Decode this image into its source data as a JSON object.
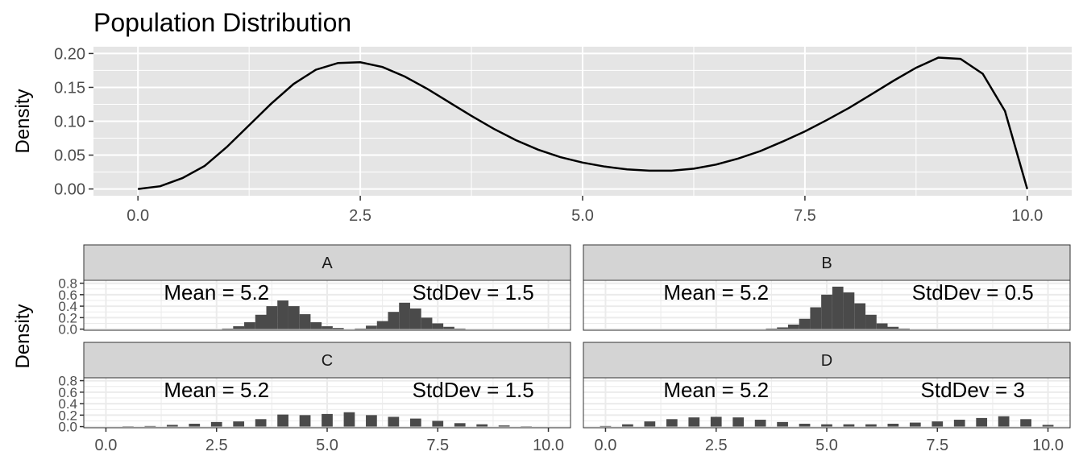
{
  "colors": {
    "panel_bg": "#e5e5e5",
    "grid": "#ffffff",
    "line": "#000000",
    "bar": "#4a4a4a",
    "strip_bg": "#d4d4d4",
    "text": "#4d4d4d"
  },
  "chart_data": [
    {
      "type": "line",
      "title": "Population Distribution",
      "xlabel": "",
      "ylabel": "Density",
      "xlim": [
        -0.5,
        10.5
      ],
      "ylim": [
        -0.01,
        0.21
      ],
      "x_ticks": [
        "0.0",
        "2.5",
        "5.0",
        "7.5",
        "10.0"
      ],
      "y_ticks": [
        "0.00",
        "0.05",
        "0.10",
        "0.15",
        "0.20"
      ],
      "grid": true,
      "series": [
        {
          "x": [
            0,
            0.25,
            0.5,
            0.75,
            1,
            1.25,
            1.5,
            1.75,
            2,
            2.25,
            2.5,
            2.75,
            3,
            3.25,
            3.5,
            3.75,
            4,
            4.25,
            4.5,
            4.75,
            5,
            5.25,
            5.5,
            5.75,
            6,
            6.25,
            6.5,
            6.75,
            7,
            7.25,
            7.5,
            7.75,
            8,
            8.25,
            8.5,
            8.75,
            9,
            9.25,
            9.5,
            9.75,
            10
          ],
          "y": [
            0,
            0.004,
            0.016,
            0.034,
            0.062,
            0.094,
            0.126,
            0.155,
            0.176,
            0.186,
            0.187,
            0.18,
            0.166,
            0.148,
            0.128,
            0.108,
            0.089,
            0.072,
            0.058,
            0.047,
            0.039,
            0.033,
            0.029,
            0.027,
            0.027,
            0.03,
            0.036,
            0.045,
            0.056,
            0.07,
            0.085,
            0.102,
            0.12,
            0.14,
            0.16,
            0.179,
            0.194,
            0.192,
            0.17,
            0.115,
            0
          ]
        }
      ]
    },
    {
      "type": "bar",
      "ylabel": "Density",
      "xlim": [
        -0.5,
        10.5
      ],
      "ylim": [
        -0.02,
        0.85
      ],
      "x_ticks": [
        "0.0",
        "2.5",
        "5.0",
        "7.5",
        "10.0"
      ],
      "y_ticks": [
        "0.0",
        "0.2",
        "0.4",
        "0.6",
        "0.8"
      ],
      "bin_width": 0.25,
      "facets": [
        {
          "strip": "A",
          "mean_label": "Mean = 5.2",
          "sd_label": "StdDev = 1.5",
          "bins": [
            [
              2.75,
              0.01
            ],
            [
              3.0,
              0.05
            ],
            [
              3.25,
              0.12
            ],
            [
              3.5,
              0.25
            ],
            [
              3.75,
              0.4
            ],
            [
              4.0,
              0.5
            ],
            [
              4.25,
              0.4
            ],
            [
              4.5,
              0.26
            ],
            [
              4.75,
              0.12
            ],
            [
              5.0,
              0.05
            ],
            [
              5.25,
              0.02
            ],
            [
              5.75,
              0.01
            ],
            [
              6.0,
              0.06
            ],
            [
              6.25,
              0.14
            ],
            [
              6.5,
              0.3
            ],
            [
              6.75,
              0.46
            ],
            [
              7.0,
              0.36
            ],
            [
              7.25,
              0.2
            ],
            [
              7.5,
              0.1
            ],
            [
              7.75,
              0.04
            ],
            [
              8.0,
              0.01
            ]
          ]
        },
        {
          "strip": "B",
          "mean_label": "Mean = 5.2",
          "sd_label": "StdDev = 0.5",
          "bins": [
            [
              3.75,
              0.01
            ],
            [
              4.0,
              0.03
            ],
            [
              4.25,
              0.08
            ],
            [
              4.5,
              0.18
            ],
            [
              4.75,
              0.38
            ],
            [
              5.0,
              0.6
            ],
            [
              5.25,
              0.74
            ],
            [
              5.5,
              0.64
            ],
            [
              5.75,
              0.45
            ],
            [
              6.0,
              0.25
            ],
            [
              6.25,
              0.1
            ],
            [
              6.5,
              0.04
            ],
            [
              6.75,
              0.01
            ]
          ]
        },
        {
          "strip": "C",
          "mean_label": "Mean = 5.2",
          "sd_label": "StdDev = 1.5",
          "bins": [
            [
              0.5,
              0.005
            ],
            [
              1.0,
              0.01
            ],
            [
              1.5,
              0.03
            ],
            [
              2.0,
              0.05
            ],
            [
              2.5,
              0.08
            ],
            [
              3.0,
              0.09
            ],
            [
              3.5,
              0.13
            ],
            [
              4.0,
              0.21
            ],
            [
              4.5,
              0.2
            ],
            [
              5.0,
              0.22
            ],
            [
              5.5,
              0.25
            ],
            [
              6.0,
              0.2
            ],
            [
              6.5,
              0.17
            ],
            [
              7.0,
              0.14
            ],
            [
              7.5,
              0.1
            ],
            [
              8.0,
              0.06
            ],
            [
              8.5,
              0.04
            ],
            [
              9.0,
              0.02
            ],
            [
              9.5,
              0.005
            ]
          ]
        },
        {
          "strip": "D",
          "mean_label": "Mean = 5.2",
          "sd_label": "StdDev = 3",
          "bins": [
            [
              0.0,
              0.01
            ],
            [
              0.5,
              0.04
            ],
            [
              1.0,
              0.09
            ],
            [
              1.5,
              0.13
            ],
            [
              2.0,
              0.16
            ],
            [
              2.5,
              0.17
            ],
            [
              3.0,
              0.16
            ],
            [
              3.5,
              0.12
            ],
            [
              4.0,
              0.08
            ],
            [
              4.5,
              0.05
            ],
            [
              5.0,
              0.04
            ],
            [
              5.5,
              0.04
            ],
            [
              6.0,
              0.04
            ],
            [
              6.5,
              0.05
            ],
            [
              7.0,
              0.07
            ],
            [
              7.5,
              0.09
            ],
            [
              8.0,
              0.12
            ],
            [
              8.5,
              0.15
            ],
            [
              9.0,
              0.18
            ],
            [
              9.5,
              0.13
            ],
            [
              10.0,
              0.03
            ]
          ]
        }
      ]
    }
  ]
}
